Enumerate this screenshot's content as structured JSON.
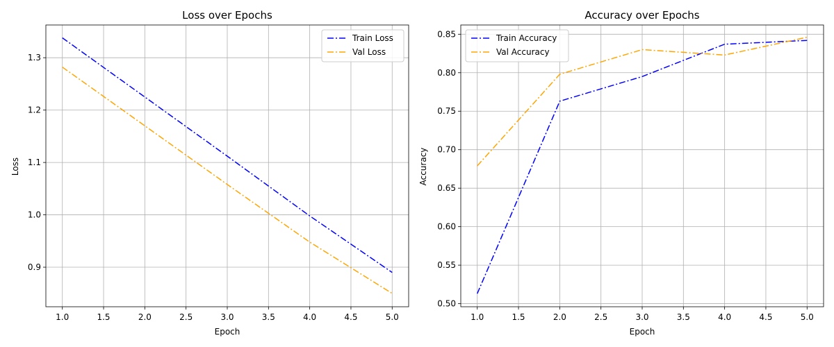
{
  "chart_data": [
    {
      "type": "line",
      "title": "Loss over Epochs",
      "xlabel": "Epoch",
      "ylabel": "Loss",
      "x": [
        1,
        2,
        3,
        4,
        5
      ],
      "xlim": [
        0.8,
        5.2
      ],
      "ylim": [
        0.8245,
        1.3625
      ],
      "xticks": [
        "1.0",
        "1.5",
        "2.0",
        "2.5",
        "3.0",
        "3.5",
        "4.0",
        "4.5",
        "5.0"
      ],
      "xtick_values": [
        1.0,
        1.5,
        2.0,
        2.5,
        3.0,
        3.5,
        4.0,
        4.5,
        5.0
      ],
      "yticks": [
        "0.9",
        "1.0",
        "1.1",
        "1.2",
        "1.3"
      ],
      "ytick_values": [
        0.9,
        1.0,
        1.1,
        1.2,
        1.3
      ],
      "grid": true,
      "legend_position": "top-right",
      "series": [
        {
          "name": "Train Loss",
          "values": [
            1.338,
            1.225,
            1.112,
            0.998,
            0.89
          ],
          "color": "#0000ff",
          "linestyle": "dashdot"
        },
        {
          "name": "Val Loss",
          "values": [
            1.282,
            1.17,
            1.058,
            0.948,
            0.85
          ],
          "color": "#ffa500",
          "linestyle": "dashdot"
        }
      ]
    },
    {
      "type": "line",
      "title": "Accuracy over Epochs",
      "xlabel": "Epoch",
      "ylabel": "Accuracy",
      "x": [
        1,
        2,
        3,
        4,
        5
      ],
      "xlim": [
        0.8,
        5.2
      ],
      "ylim": [
        0.496,
        0.862
      ],
      "xticks": [
        "1.0",
        "1.5",
        "2.0",
        "2.5",
        "3.0",
        "3.5",
        "4.0",
        "4.5",
        "5.0"
      ],
      "xtick_values": [
        1.0,
        1.5,
        2.0,
        2.5,
        3.0,
        3.5,
        4.0,
        4.5,
        5.0
      ],
      "yticks": [
        "0.50",
        "0.55",
        "0.60",
        "0.65",
        "0.70",
        "0.75",
        "0.80",
        "0.85"
      ],
      "ytick_values": [
        0.5,
        0.55,
        0.6,
        0.65,
        0.7,
        0.75,
        0.8,
        0.85
      ],
      "grid": true,
      "legend_position": "top-left",
      "series": [
        {
          "name": "Train Accuracy",
          "values": [
            0.513,
            0.763,
            0.795,
            0.837,
            0.842
          ],
          "color": "#0000ff",
          "linestyle": "dashdot"
        },
        {
          "name": "Val Accuracy",
          "values": [
            0.679,
            0.798,
            0.83,
            0.823,
            0.846
          ],
          "color": "#ffa500",
          "linestyle": "dashdot"
        }
      ]
    }
  ]
}
